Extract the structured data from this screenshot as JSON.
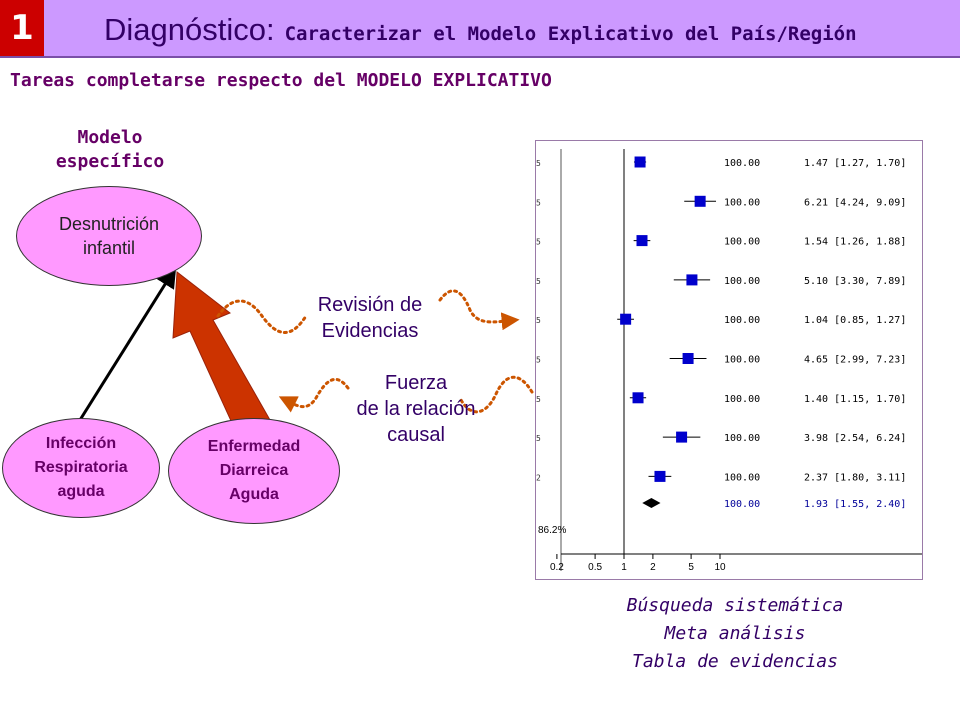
{
  "header": {
    "badge": "1",
    "title_main": "Diagnóstico:",
    "title_sub": "Caracterizar el Modelo Explicativo del País/Región"
  },
  "tasks_heading": "Tareas completarse respecto del MODELO EXPLICATIVO",
  "model_label": [
    "Modelo",
    "específico"
  ],
  "nodes": {
    "outcome": [
      "Desnutrición",
      "infantil"
    ],
    "cause_respiratory": [
      "Infección",
      "Respiratoria",
      "aguda"
    ],
    "cause_diarrhea": [
      "Enfermedad",
      "Diarreica",
      "Aguda"
    ]
  },
  "labels": {
    "review": [
      "Revisión de",
      "Evidencias"
    ],
    "strength": [
      "Fuerza",
      "de la relación",
      "causal"
    ]
  },
  "forest_plot": {
    "rows": [
      {
        "label": "5",
        "est": 1.47,
        "lo": 1.27,
        "hi": 1.7,
        "weight": "100.00",
        "ci_text": "1.47 [1.27, 1.70]"
      },
      {
        "label": "5",
        "est": 6.21,
        "lo": 4.24,
        "hi": 9.09,
        "weight": "100.00",
        "ci_text": "6.21 [4.24, 9.09]"
      },
      {
        "label": "5",
        "est": 1.54,
        "lo": 1.26,
        "hi": 1.88,
        "weight": "100.00",
        "ci_text": "1.54 [1.26, 1.88]"
      },
      {
        "label": "5",
        "est": 5.1,
        "lo": 3.3,
        "hi": 7.89,
        "weight": "100.00",
        "ci_text": "5.10 [3.30, 7.89]"
      },
      {
        "label": "5",
        "est": 1.04,
        "lo": 0.85,
        "hi": 1.27,
        "weight": "100.00",
        "ci_text": "1.04 [0.85, 1.27]"
      },
      {
        "label": "5",
        "est": 4.65,
        "lo": 2.99,
        "hi": 7.23,
        "weight": "100.00",
        "ci_text": "4.65 [2.99, 7.23]"
      },
      {
        "label": "5",
        "est": 1.4,
        "lo": 1.15,
        "hi": 1.7,
        "weight": "100.00",
        "ci_text": "1.40 [1.15, 1.70]"
      },
      {
        "label": "5",
        "est": 3.98,
        "lo": 2.54,
        "hi": 6.24,
        "weight": "100.00",
        "ci_text": "3.98 [2.54, 6.24]"
      },
      {
        "label": "2",
        "est": 2.37,
        "lo": 1.8,
        "hi": 3.11,
        "weight": "100.00",
        "ci_text": "2.37 [1.80, 3.11]"
      }
    ],
    "pooled": {
      "est": 1.93,
      "lo": 1.55,
      "hi": 2.4,
      "weight": "100.00",
      "ci_text": "1.93 [1.55, 2.40]"
    },
    "heterogeneity": "86.2%",
    "x_ticks": [
      {
        "value": 0.2,
        "label": "0.2"
      },
      {
        "value": 0.5,
        "label": "0.5"
      },
      {
        "value": 1,
        "label": "1"
      },
      {
        "value": 2,
        "label": "2"
      },
      {
        "value": 5,
        "label": "5"
      },
      {
        "value": 10,
        "label": "10"
      }
    ],
    "x_scale": "log",
    "marker_color": "#0000cc",
    "pooled_text_color": "#000099"
  },
  "caption": [
    "Búsqueda sistemática",
    "Meta análisis",
    "Tabla de evidencias"
  ],
  "colors": {
    "header_bg": "#cc99ff",
    "badge_bg": "#cc0000",
    "node_fill": "#ff99ff",
    "big_arrow": "#cc3300",
    "dotted_arrow": "#cc5500"
  }
}
